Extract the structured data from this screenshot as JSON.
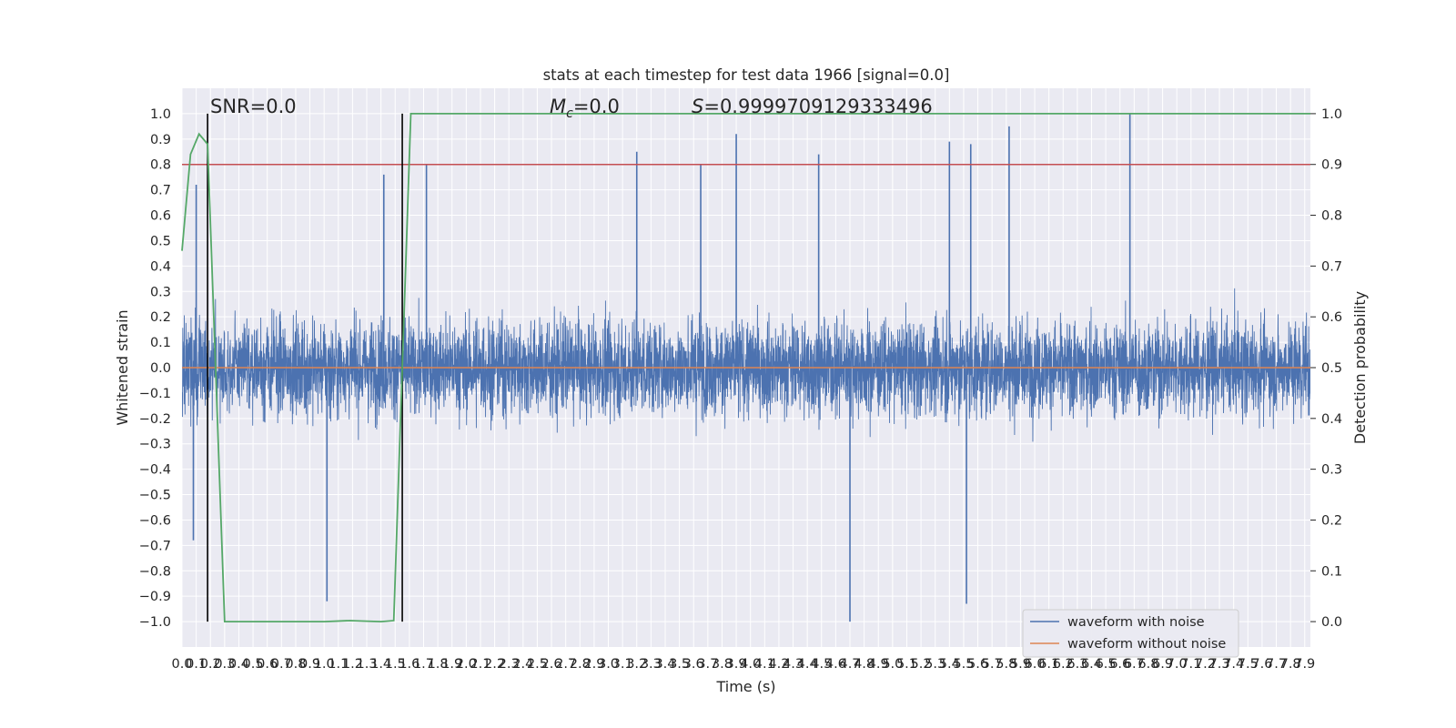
{
  "chart_data": {
    "type": "line",
    "title": "stats at each timestep for test data 1966 [signal=0.0]",
    "xlabel": "Time (s)",
    "ylabel": "Whitened strain",
    "y2label": "Detection probability",
    "xlim": [
      0.0,
      7.94
    ],
    "ylim": [
      -1.1,
      1.1
    ],
    "y2lim": [
      -0.05,
      1.05
    ],
    "x_ticks": [
      0.0,
      0.1,
      0.2,
      0.3,
      0.4,
      0.5,
      0.6,
      0.7,
      0.8,
      0.9,
      1.0,
      1.1,
      1.2,
      1.3,
      1.4,
      1.5,
      1.6,
      1.7,
      1.8,
      1.9,
      2.0,
      2.1,
      2.2,
      2.3,
      2.4,
      2.5,
      2.6,
      2.7,
      2.8,
      2.9,
      3.0,
      3.1,
      3.2,
      3.3,
      3.4,
      3.5,
      3.6,
      3.7,
      3.8,
      3.9,
      4.0,
      4.1,
      4.2,
      4.3,
      4.4,
      4.5,
      4.6,
      4.7,
      4.8,
      4.9,
      5.0,
      5.1,
      5.2,
      5.3,
      5.4,
      5.5,
      5.6,
      5.7,
      5.8,
      5.9,
      6.0,
      6.1,
      6.2,
      6.3,
      6.4,
      6.5,
      6.6,
      6.7,
      6.8,
      6.9,
      7.0,
      7.1,
      7.2,
      7.3,
      7.4,
      7.5,
      7.6,
      7.7,
      7.8,
      7.9
    ],
    "y_ticks": [
      -1.0,
      -0.9,
      -0.8,
      -0.7,
      -0.6,
      -0.5,
      -0.4,
      -0.3,
      -0.2,
      -0.1,
      0.0,
      0.1,
      0.2,
      0.3,
      0.4,
      0.5,
      0.6,
      0.7,
      0.8,
      0.9,
      1.0
    ],
    "y2_ticks": [
      0.0,
      0.1,
      0.2,
      0.3,
      0.4,
      0.5,
      0.6,
      0.7,
      0.8,
      0.9,
      1.0
    ],
    "annotations": {
      "snr": "SNR=0.0",
      "mc_symbol": "M",
      "mc_sub": "c",
      "mc_value": "=0.0",
      "s_symbol": "S",
      "s_value": "=0.9999709129333496"
    },
    "legend": {
      "location": "lower-right",
      "entries": [
        "waveform with noise",
        "waveform without noise"
      ]
    },
    "series": [
      {
        "name": "waveform with noise",
        "axis": "left",
        "color": "#4c72b0",
        "style": "dense noise, envelope ≈ ±0.4 with spikes reaching about ±1.0",
        "spikes": [
          {
            "x": 0.08,
            "y": -0.68
          },
          {
            "x": 0.1,
            "y": 0.72
          },
          {
            "x": 1.02,
            "y": -0.92
          },
          {
            "x": 1.42,
            "y": 0.76
          },
          {
            "x": 1.72,
            "y": 0.8
          },
          {
            "x": 3.2,
            "y": 0.85
          },
          {
            "x": 3.65,
            "y": 0.8
          },
          {
            "x": 3.9,
            "y": 0.92
          },
          {
            "x": 4.48,
            "y": 0.84
          },
          {
            "x": 4.7,
            "y": -1.0
          },
          {
            "x": 5.4,
            "y": 0.89
          },
          {
            "x": 5.55,
            "y": 0.88
          },
          {
            "x": 5.52,
            "y": -0.93
          },
          {
            "x": 5.82,
            "y": 0.95
          },
          {
            "x": 6.67,
            "y": 1.0
          }
        ]
      },
      {
        "name": "waveform without noise",
        "axis": "left",
        "color": "#dd8452",
        "x": [
          0.0,
          7.94
        ],
        "y": [
          0.0,
          0.0
        ]
      },
      {
        "name": "",
        "axis": "right",
        "color": "#55a868",
        "x": [
          0.0,
          0.06,
          0.12,
          0.18,
          0.3,
          0.5,
          1.0,
          1.18,
          1.4,
          1.49,
          1.55,
          1.61,
          1.7,
          7.94
        ],
        "y": [
          0.73,
          0.92,
          0.96,
          0.94,
          0.0,
          0.0,
          0.0,
          0.002,
          0.0,
          0.002,
          0.5,
          1.0,
          1.0,
          1.0
        ]
      }
    ],
    "threshold": {
      "axis": "right",
      "value": 0.9,
      "color": "#c44e52"
    },
    "event_lines": [
      {
        "x": 0.18,
        "y_from": -1.0,
        "y_to": 1.0
      },
      {
        "x": 1.55,
        "y_from": -1.0,
        "y_to": 1.0
      }
    ],
    "grid": true
  }
}
